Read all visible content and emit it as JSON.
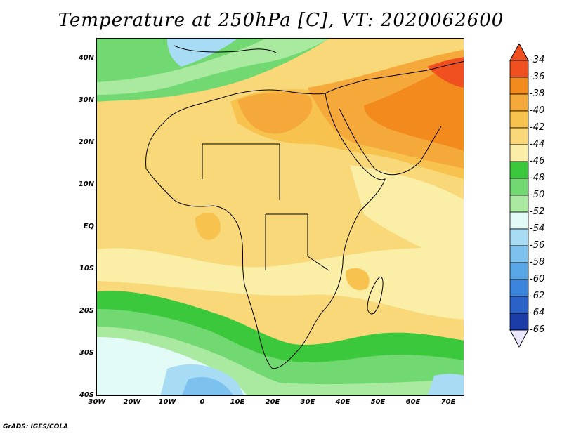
{
  "title": "Temperature at 250hPa [C], VT: 2020062600",
  "credit": "GrADS: IGES/COLA",
  "axes": {
    "y_labels": [
      "40N",
      "30N",
      "20N",
      "10N",
      "EQ",
      "10S",
      "20S",
      "30S",
      "40S"
    ],
    "x_labels": [
      "30W",
      "20W",
      "10W",
      "0",
      "10E",
      "20E",
      "30E",
      "40E",
      "50E",
      "60E",
      "70E"
    ]
  },
  "colorbar": {
    "labels": [
      "-34",
      "-36",
      "-38",
      "-40",
      "-42",
      "-44",
      "-46",
      "-48",
      "-50",
      "-52",
      "-54",
      "-56",
      "-58",
      "-60",
      "-62",
      "-64",
      "-66"
    ],
    "colors": [
      "#f05020",
      "#f28a1e",
      "#f5a93a",
      "#f7c24e",
      "#f8d878",
      "#fbeea6",
      "#3cc83c",
      "#72d872",
      "#a9eaa0",
      "#e2fbf6",
      "#a8dcf5",
      "#7dc2ee",
      "#58a6e6",
      "#3b86dc",
      "#2a62c8",
      "#1c3da8",
      "#0e1a80"
    ]
  },
  "chart_data": {
    "type": "heatmap",
    "title": "Temperature at 250hPa [C], VT: 2020062600",
    "variable": "Temperature",
    "level": "250hPa",
    "units": "C",
    "valid_time": "2020062600",
    "xlim": [
      -30,
      75
    ],
    "ylim": [
      -40,
      45
    ],
    "contour_levels": [
      -34,
      -36,
      -38,
      -40,
      -42,
      -44,
      -46,
      -48,
      -50,
      -52,
      -54,
      -56,
      -58,
      -60,
      -62,
      -64,
      -66
    ]
  }
}
